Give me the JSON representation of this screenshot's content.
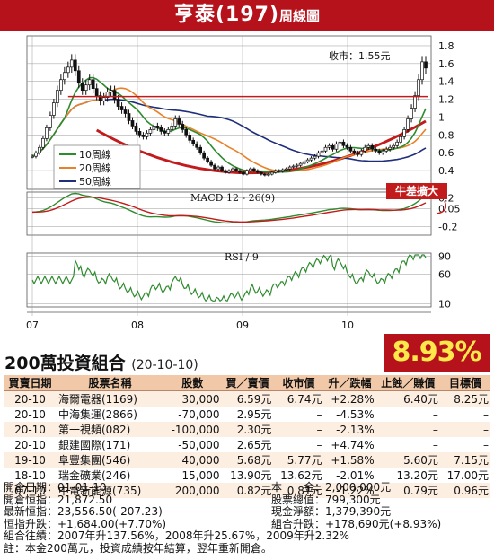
{
  "header": {
    "title": "亨泰(197)",
    "subtitle": "周線圖"
  },
  "chart_data": {
    "type": "line",
    "price_panel": {
      "annotation": "收市：1.55元",
      "y_ticks": [
        1.8,
        1.6,
        1.4,
        1.2,
        1.0,
        0.8,
        0.6,
        0.4
      ],
      "ylim": [
        0.25,
        1.85
      ],
      "resistance_line": 1.23,
      "legend": [
        "10周線",
        "20周線",
        "50周線"
      ],
      "series": [
        {
          "name": "10周線",
          "color": "#2e8b2e"
        },
        {
          "name": "20周線",
          "color": "#e8822a"
        },
        {
          "name": "50周線",
          "color": "#1f2e7a"
        }
      ],
      "close": [
        0.56,
        0.6,
        0.66,
        0.76,
        0.88,
        1.02,
        1.16,
        1.3,
        1.42,
        1.5,
        1.56,
        1.64,
        1.52,
        1.38,
        1.3,
        1.36,
        1.42,
        1.32,
        1.24,
        1.18,
        1.22,
        1.28,
        1.3,
        1.2,
        1.12,
        1.08,
        1.04,
        0.96,
        0.9,
        0.84,
        0.8,
        0.78,
        0.82,
        0.86,
        0.9,
        0.88,
        0.84,
        0.82,
        0.86,
        0.9,
        0.98,
        0.92,
        0.86,
        0.8,
        0.74,
        0.7,
        0.66,
        0.6,
        0.54,
        0.5,
        0.46,
        0.42,
        0.44,
        0.4,
        0.38,
        0.4,
        0.42,
        0.4,
        0.38,
        0.36,
        0.4,
        0.42,
        0.4,
        0.38,
        0.36,
        0.35,
        0.36,
        0.38,
        0.4,
        0.39,
        0.41,
        0.42,
        0.44,
        0.45,
        0.46,
        0.48,
        0.5,
        0.52,
        0.54,
        0.56,
        0.6,
        0.62,
        0.66,
        0.68,
        0.64,
        0.7,
        0.72,
        0.68,
        0.66,
        0.62,
        0.6,
        0.58,
        0.62,
        0.66,
        0.68,
        0.64,
        0.62,
        0.6,
        0.62,
        0.64,
        0.66,
        0.68,
        0.72,
        0.78,
        0.86,
        0.98,
        1.1,
        1.24,
        1.42,
        1.62,
        1.55
      ]
    },
    "macd_panel": {
      "label": "MACD 12 - 26(9)",
      "y_ticks": [
        0.2,
        0.05,
        -0.2
      ],
      "ylim": [
        -0.32,
        0.28
      ]
    },
    "rsi_panel": {
      "label": "RSI / 9",
      "y_ticks": [
        90,
        60,
        10
      ],
      "ylim": [
        5,
        95
      ]
    },
    "x_ticks": [
      "07",
      "08",
      "09",
      "10"
    ],
    "annotation_badge": "牛差擴大"
  },
  "portfolio": {
    "title": "200萬投資組合",
    "date": "(20-10-10)",
    "change_pct": "8.93%",
    "columns": [
      "買賣日期",
      "股票名稱",
      "股數",
      "買／賣價",
      "收市價",
      "升／跌幅",
      "止蝕／賺價",
      "目標價"
    ],
    "rows": [
      [
        "20-10",
        "海爾電器(1169)",
        "30,000",
        "6.59元",
        "6.74元",
        "+2.28%",
        "6.40元",
        "8.25元"
      ],
      [
        "20-10",
        "中海集運(2866)",
        "-70,000",
        "2.95元",
        "–",
        "-4.53%",
        "–",
        "–"
      ],
      [
        "20-10",
        "第一視頻(082)",
        "-100,000",
        "2.30元",
        "–",
        "-2.13%",
        "–",
        "–"
      ],
      [
        "20-10",
        "銀建國際(171)",
        "-50,000",
        "2.65元",
        "–",
        "+4.74%",
        "–",
        "–"
      ],
      [
        "19-10",
        "阜豐集團(546)",
        "40,000",
        "5.68元",
        "5.77元",
        "+1.58%",
        "5.60元",
        "7.15元"
      ],
      [
        "18-10",
        "瑞金礦業(246)",
        "15,000",
        "13.90元",
        "13.62元",
        "-2.01%",
        "13.20元",
        "17.00元"
      ],
      [
        "07-10",
        "中電新能源(735)",
        "200,000",
        "0.82元",
        "0.81元",
        "-1.22%",
        "0.79元",
        "0.96元"
      ]
    ],
    "summary": {
      "open_date": "開倉日期：01-01-10",
      "capital": "本　　金：2,000,000元",
      "open_hsi": "開倉恒指：21,872.50",
      "stock_value": "股票總值：799,300元",
      "latest_hsi": "最新恒指：23,556.50(-207.23)",
      "cash": "現金淨額：1,379,390元",
      "hsi_change": "恒指升跌：+1,684.00(+7.70%)",
      "portfolio_change": "組合升跌：+178,690元(+8.93%)",
      "past_record": "組合往績：2007年升137.56%，2008年升25.67%，2009年升2.32%",
      "note": "註：本金200萬元，投資成績按年結算，翌年重新開倉。"
    }
  }
}
